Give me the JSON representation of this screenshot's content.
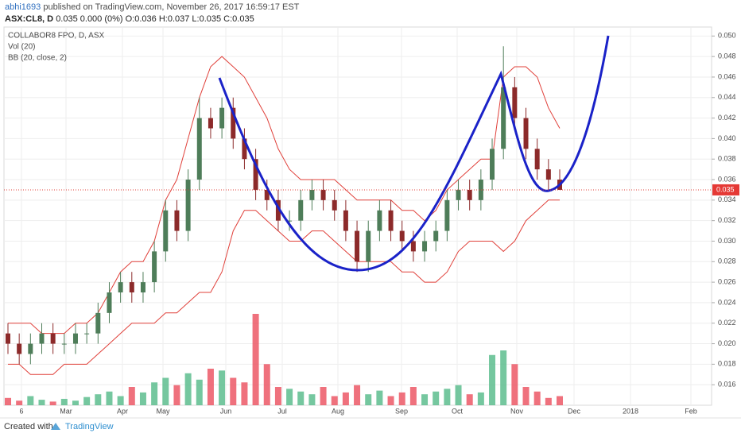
{
  "header": {
    "author": "abhi1693",
    "published": " published on TradingView.com, November 26, 2017 16:59:17 EST",
    "symbol": "ASX:CL8, D",
    "quote": "0.035 0.000 (0%) O:0.036 H:0.037 L:0.035 C:0.035"
  },
  "footer": {
    "created": "Created with",
    "brand": "TradingView"
  },
  "chart_data": {
    "type": "candlestick",
    "title": "COLLABOR8 FPO, D, ASX",
    "volume_label": "Vol (20)",
    "bb_label": "BB (20, close, 2)",
    "up_color": "#4e7d59",
    "down_color": "#8c2a2a",
    "band_color": "#e0403a",
    "volume_up_color": "#53b987",
    "volume_down_color": "#eb4d5c",
    "ylim": [
      0.014,
      0.0508
    ],
    "yticks": [
      {
        "value": 0.016,
        "label": "0.016"
      },
      {
        "value": 0.018,
        "label": "0.018"
      },
      {
        "value": 0.02,
        "label": "0.020"
      },
      {
        "value": 0.022,
        "label": "0.022"
      },
      {
        "value": 0.024,
        "label": "0.024"
      },
      {
        "value": 0.026,
        "label": "0.026"
      },
      {
        "value": 0.028,
        "label": "0.028"
      },
      {
        "value": 0.03,
        "label": "0.030"
      },
      {
        "value": 0.032,
        "label": "0.032"
      },
      {
        "value": 0.034,
        "label": "0.034"
      },
      {
        "value": 0.036,
        "label": "0.036"
      },
      {
        "value": 0.038,
        "label": "0.038"
      },
      {
        "value": 0.04,
        "label": "0.040"
      },
      {
        "value": 0.042,
        "label": "0.042"
      },
      {
        "value": 0.044,
        "label": "0.044"
      },
      {
        "value": 0.046,
        "label": "0.046"
      },
      {
        "value": 0.048,
        "label": "0.048"
      },
      {
        "value": 0.05,
        "label": "0.050"
      }
    ],
    "xticks": [
      "6",
      "Mar",
      "Apr",
      "May",
      "Jun",
      "Jul",
      "Aug",
      "Sep",
      "Oct",
      "Nov",
      "Dec",
      "2018",
      "Feb"
    ],
    "last_price": 0.035,
    "open": [
      0.021,
      0.02,
      0.019,
      0.02,
      0.021,
      0.02,
      0.02,
      0.021,
      0.021,
      0.023,
      0.025,
      0.026,
      0.025,
      0.026,
      0.029,
      0.033,
      0.031,
      0.036,
      0.042,
      0.041,
      0.043,
      0.04,
      0.038,
      0.035,
      0.034,
      0.032,
      0.032,
      0.034,
      0.035,
      0.034,
      0.033,
      0.031,
      0.028,
      0.031,
      0.033,
      0.031,
      0.03,
      0.029,
      0.03,
      0.031,
      0.034,
      0.035,
      0.034,
      0.036,
      0.039,
      0.045,
      0.042,
      0.039,
      0.037,
      0.036
    ],
    "high": [
      0.022,
      0.021,
      0.021,
      0.022,
      0.022,
      0.021,
      0.022,
      0.022,
      0.024,
      0.026,
      0.027,
      0.027,
      0.027,
      0.03,
      0.034,
      0.034,
      0.037,
      0.044,
      0.043,
      0.044,
      0.044,
      0.041,
      0.039,
      0.036,
      0.035,
      0.033,
      0.035,
      0.036,
      0.036,
      0.035,
      0.034,
      0.032,
      0.032,
      0.034,
      0.034,
      0.032,
      0.031,
      0.031,
      0.032,
      0.035,
      0.036,
      0.036,
      0.037,
      0.04,
      0.049,
      0.046,
      0.043,
      0.04,
      0.038,
      0.037
    ],
    "low": [
      0.019,
      0.018,
      0.018,
      0.019,
      0.019,
      0.019,
      0.019,
      0.02,
      0.02,
      0.022,
      0.024,
      0.024,
      0.024,
      0.025,
      0.028,
      0.03,
      0.03,
      0.035,
      0.04,
      0.04,
      0.039,
      0.037,
      0.034,
      0.033,
      0.031,
      0.031,
      0.031,
      0.033,
      0.033,
      0.032,
      0.03,
      0.027,
      0.027,
      0.03,
      0.03,
      0.029,
      0.028,
      0.028,
      0.029,
      0.03,
      0.033,
      0.033,
      0.033,
      0.035,
      0.038,
      0.041,
      0.038,
      0.036,
      0.035,
      0.035
    ],
    "close": [
      0.02,
      0.019,
      0.02,
      0.021,
      0.02,
      0.02,
      0.021,
      0.021,
      0.023,
      0.025,
      0.026,
      0.025,
      0.026,
      0.029,
      0.033,
      0.031,
      0.036,
      0.042,
      0.041,
      0.043,
      0.04,
      0.038,
      0.035,
      0.034,
      0.032,
      0.032,
      0.034,
      0.035,
      0.034,
      0.033,
      0.031,
      0.028,
      0.031,
      0.033,
      0.031,
      0.03,
      0.029,
      0.03,
      0.031,
      0.034,
      0.035,
      0.034,
      0.036,
      0.039,
      0.045,
      0.042,
      0.039,
      0.037,
      0.036,
      0.035
    ],
    "volume": [
      8,
      5,
      10,
      6,
      4,
      7,
      5,
      9,
      12,
      15,
      10,
      20,
      14,
      25,
      30,
      22,
      35,
      28,
      40,
      38,
      30,
      25,
      100,
      45,
      20,
      18,
      15,
      12,
      20,
      10,
      14,
      22,
      12,
      16,
      10,
      14,
      20,
      12,
      15,
      18,
      22,
      12,
      14,
      55,
      60,
      45,
      20,
      15,
      8,
      10
    ],
    "bb_upper": [
      0.022,
      0.022,
      0.022,
      0.021,
      0.021,
      0.021,
      0.022,
      0.022,
      0.023,
      0.025,
      0.027,
      0.028,
      0.028,
      0.03,
      0.034,
      0.036,
      0.04,
      0.044,
      0.047,
      0.048,
      0.047,
      0.046,
      0.044,
      0.042,
      0.039,
      0.037,
      0.036,
      0.036,
      0.036,
      0.036,
      0.035,
      0.034,
      0.034,
      0.034,
      0.034,
      0.033,
      0.033,
      0.032,
      0.033,
      0.035,
      0.036,
      0.037,
      0.038,
      0.038,
      0.046,
      0.047,
      0.047,
      0.046,
      0.043,
      0.041
    ],
    "bb_lower": [
      0.018,
      0.018,
      0.017,
      0.017,
      0.017,
      0.018,
      0.018,
      0.018,
      0.019,
      0.02,
      0.021,
      0.022,
      0.022,
      0.022,
      0.023,
      0.023,
      0.024,
      0.025,
      0.025,
      0.027,
      0.031,
      0.033,
      0.033,
      0.032,
      0.031,
      0.03,
      0.03,
      0.031,
      0.031,
      0.03,
      0.029,
      0.028,
      0.028,
      0.028,
      0.028,
      0.027,
      0.027,
      0.026,
      0.026,
      0.027,
      0.029,
      0.03,
      0.03,
      0.03,
      0.029,
      0.03,
      0.032,
      0.033,
      0.034,
      0.034
    ]
  }
}
